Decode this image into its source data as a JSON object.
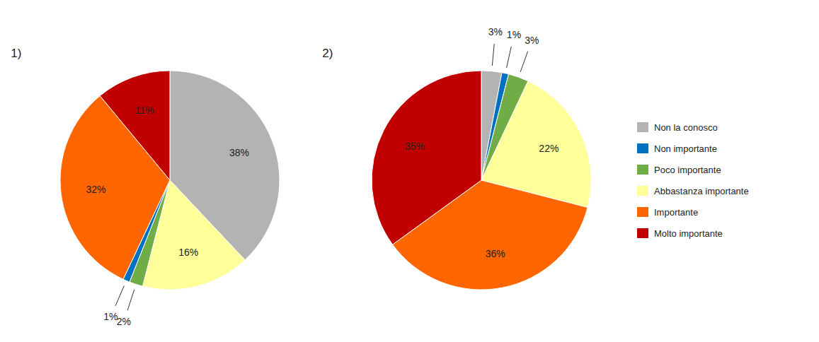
{
  "chart_data": [
    {
      "type": "pie",
      "title": "1)",
      "categories": [
        "Non la conosco",
        "Abbastanza importante",
        "Poco importante",
        "Non importante",
        "Importante",
        "Molto importante"
      ],
      "values": [
        38,
        16,
        2,
        1,
        32,
        11
      ],
      "value_labels": [
        "38%",
        "16%",
        "2%",
        "1%",
        "32%",
        "11%"
      ],
      "colors": [
        "#b3b3b3",
        "#ffff99",
        "#70ad47",
        "#0070c0",
        "#ff6600",
        "#c00000"
      ],
      "data_labels": true
    },
    {
      "type": "pie",
      "title": "2)",
      "categories": [
        "Non la conosco",
        "Non importante",
        "Poco importante",
        "Abbastanza importante",
        "Importante",
        "Molto importante"
      ],
      "values": [
        3,
        1,
        3,
        22,
        36,
        35
      ],
      "value_labels": [
        "3%",
        "1%",
        "3%",
        "22%",
        "36%",
        "35%"
      ],
      "colors": [
        "#b3b3b3",
        "#0070c0",
        "#70ad47",
        "#ffff99",
        "#ff6600",
        "#c00000"
      ],
      "data_labels": true,
      "legend": "right"
    }
  ]
}
